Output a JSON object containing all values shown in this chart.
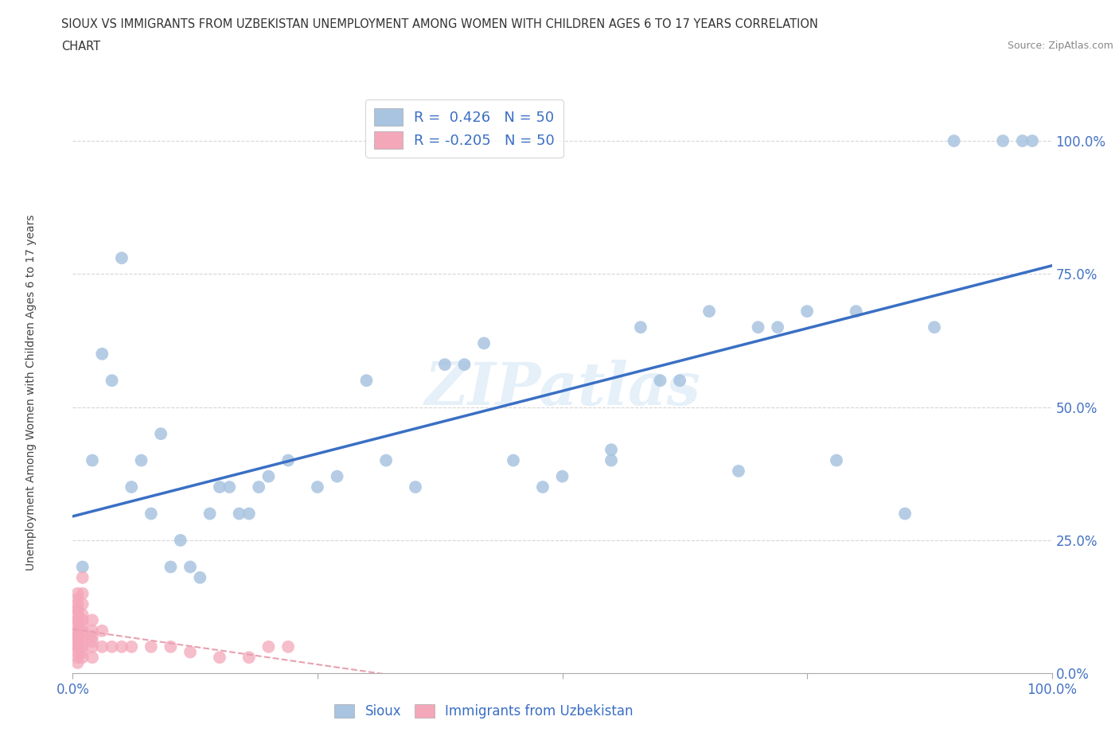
{
  "title_line1": "SIOUX VS IMMIGRANTS FROM UZBEKISTAN UNEMPLOYMENT AMONG WOMEN WITH CHILDREN AGES 6 TO 17 YEARS CORRELATION",
  "title_line2": "CHART",
  "source": "Source: ZipAtlas.com",
  "ylabel": "Unemployment Among Women with Children Ages 6 to 17 years",
  "r_sioux": 0.426,
  "n_sioux": 50,
  "r_uzbek": -0.205,
  "n_uzbek": 50,
  "sioux_color": "#a8c4e0",
  "uzbek_color": "#f4a7b9",
  "sioux_line_color": "#3a6fc4",
  "uzbek_line_color": "#e8a0b0",
  "grid_color": "#cccccc",
  "sioux_x": [
    1,
    2,
    3,
    4,
    5,
    6,
    7,
    8,
    9,
    10,
    11,
    12,
    13,
    14,
    15,
    16,
    17,
    18,
    19,
    20,
    22,
    25,
    27,
    30,
    32,
    35,
    38,
    40,
    42,
    45,
    48,
    50,
    55,
    55,
    58,
    60,
    62,
    65,
    68,
    70,
    72,
    75,
    78,
    80,
    85,
    88,
    90,
    95,
    97,
    98
  ],
  "sioux_y": [
    20,
    40,
    60,
    55,
    78,
    35,
    40,
    30,
    45,
    20,
    25,
    20,
    18,
    30,
    35,
    35,
    30,
    30,
    35,
    37,
    40,
    35,
    37,
    55,
    40,
    35,
    58,
    58,
    62,
    40,
    35,
    37,
    40,
    42,
    65,
    55,
    55,
    68,
    38,
    65,
    65,
    68,
    40,
    68,
    30,
    65,
    100,
    100,
    100,
    100
  ],
  "uzbek_x": [
    0.5,
    0.5,
    0.5,
    0.5,
    0.5,
    0.5,
    0.5,
    0.5,
    0.5,
    0.5,
    0.5,
    0.5,
    0.5,
    0.5,
    0.5,
    0.5,
    0.5,
    0.5,
    0.5,
    0.5,
    1,
    1,
    1,
    1,
    1,
    1,
    1,
    1,
    1,
    1,
    1,
    1,
    2,
    2,
    2,
    2,
    2,
    2,
    3,
    3,
    4,
    5,
    6,
    8,
    10,
    12,
    15,
    18,
    20,
    22
  ],
  "uzbek_y": [
    2,
    3,
    4,
    5,
    5,
    6,
    6,
    7,
    7,
    8,
    8,
    9,
    10,
    10,
    11,
    12,
    12,
    13,
    14,
    15,
    3,
    4,
    5,
    6,
    7,
    8,
    9,
    10,
    11,
    13,
    15,
    18,
    3,
    5,
    6,
    7,
    8,
    10,
    5,
    8,
    5,
    5,
    5,
    5,
    5,
    4,
    3,
    3,
    5,
    5
  ],
  "background_color": "#ffffff",
  "ytick_labels": [
    "0.0%",
    "25.0%",
    "50.0%",
    "75.0%",
    "100.0%"
  ],
  "xtick_labels": [
    "0.0%",
    "100.0%"
  ]
}
